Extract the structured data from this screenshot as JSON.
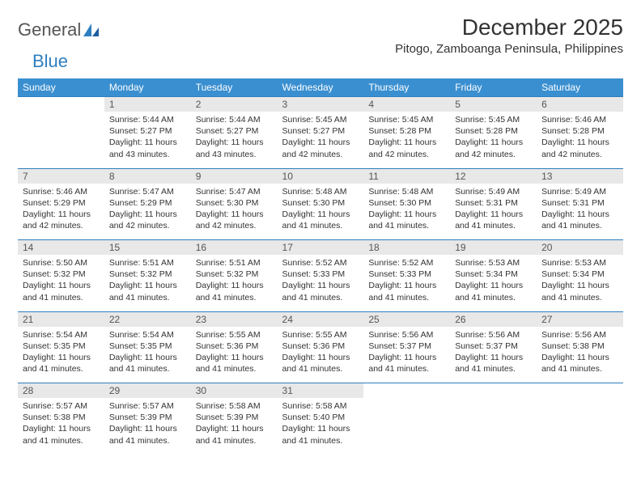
{
  "logo": {
    "text_general": "General",
    "text_blue": "Blue"
  },
  "title": "December 2025",
  "location": "Pitogo, Zamboanga Peninsula, Philippines",
  "colors": {
    "header_bg": "#3a8fd0",
    "header_text": "#ffffff",
    "daynum_bg": "#e8e8e8",
    "daynum_border": "#2f7fbf",
    "body_text": "#333333",
    "logo_blue": "#2f7fbf"
  },
  "day_headers": [
    "Sunday",
    "Monday",
    "Tuesday",
    "Wednesday",
    "Thursday",
    "Friday",
    "Saturday"
  ],
  "weeks": [
    {
      "nums": [
        "",
        "1",
        "2",
        "3",
        "4",
        "5",
        "6"
      ],
      "cells": [
        null,
        {
          "sunrise": "5:44 AM",
          "sunset": "5:27 PM",
          "daylight": "11 hours and 43 minutes."
        },
        {
          "sunrise": "5:44 AM",
          "sunset": "5:27 PM",
          "daylight": "11 hours and 43 minutes."
        },
        {
          "sunrise": "5:45 AM",
          "sunset": "5:27 PM",
          "daylight": "11 hours and 42 minutes."
        },
        {
          "sunrise": "5:45 AM",
          "sunset": "5:28 PM",
          "daylight": "11 hours and 42 minutes."
        },
        {
          "sunrise": "5:45 AM",
          "sunset": "5:28 PM",
          "daylight": "11 hours and 42 minutes."
        },
        {
          "sunrise": "5:46 AM",
          "sunset": "5:28 PM",
          "daylight": "11 hours and 42 minutes."
        }
      ]
    },
    {
      "nums": [
        "7",
        "8",
        "9",
        "10",
        "11",
        "12",
        "13"
      ],
      "cells": [
        {
          "sunrise": "5:46 AM",
          "sunset": "5:29 PM",
          "daylight": "11 hours and 42 minutes."
        },
        {
          "sunrise": "5:47 AM",
          "sunset": "5:29 PM",
          "daylight": "11 hours and 42 minutes."
        },
        {
          "sunrise": "5:47 AM",
          "sunset": "5:30 PM",
          "daylight": "11 hours and 42 minutes."
        },
        {
          "sunrise": "5:48 AM",
          "sunset": "5:30 PM",
          "daylight": "11 hours and 41 minutes."
        },
        {
          "sunrise": "5:48 AM",
          "sunset": "5:30 PM",
          "daylight": "11 hours and 41 minutes."
        },
        {
          "sunrise": "5:49 AM",
          "sunset": "5:31 PM",
          "daylight": "11 hours and 41 minutes."
        },
        {
          "sunrise": "5:49 AM",
          "sunset": "5:31 PM",
          "daylight": "11 hours and 41 minutes."
        }
      ]
    },
    {
      "nums": [
        "14",
        "15",
        "16",
        "17",
        "18",
        "19",
        "20"
      ],
      "cells": [
        {
          "sunrise": "5:50 AM",
          "sunset": "5:32 PM",
          "daylight": "11 hours and 41 minutes."
        },
        {
          "sunrise": "5:51 AM",
          "sunset": "5:32 PM",
          "daylight": "11 hours and 41 minutes."
        },
        {
          "sunrise": "5:51 AM",
          "sunset": "5:32 PM",
          "daylight": "11 hours and 41 minutes."
        },
        {
          "sunrise": "5:52 AM",
          "sunset": "5:33 PM",
          "daylight": "11 hours and 41 minutes."
        },
        {
          "sunrise": "5:52 AM",
          "sunset": "5:33 PM",
          "daylight": "11 hours and 41 minutes."
        },
        {
          "sunrise": "5:53 AM",
          "sunset": "5:34 PM",
          "daylight": "11 hours and 41 minutes."
        },
        {
          "sunrise": "5:53 AM",
          "sunset": "5:34 PM",
          "daylight": "11 hours and 41 minutes."
        }
      ]
    },
    {
      "nums": [
        "21",
        "22",
        "23",
        "24",
        "25",
        "26",
        "27"
      ],
      "cells": [
        {
          "sunrise": "5:54 AM",
          "sunset": "5:35 PM",
          "daylight": "11 hours and 41 minutes."
        },
        {
          "sunrise": "5:54 AM",
          "sunset": "5:35 PM",
          "daylight": "11 hours and 41 minutes."
        },
        {
          "sunrise": "5:55 AM",
          "sunset": "5:36 PM",
          "daylight": "11 hours and 41 minutes."
        },
        {
          "sunrise": "5:55 AM",
          "sunset": "5:36 PM",
          "daylight": "11 hours and 41 minutes."
        },
        {
          "sunrise": "5:56 AM",
          "sunset": "5:37 PM",
          "daylight": "11 hours and 41 minutes."
        },
        {
          "sunrise": "5:56 AM",
          "sunset": "5:37 PM",
          "daylight": "11 hours and 41 minutes."
        },
        {
          "sunrise": "5:56 AM",
          "sunset": "5:38 PM",
          "daylight": "11 hours and 41 minutes."
        }
      ]
    },
    {
      "nums": [
        "28",
        "29",
        "30",
        "31",
        "",
        "",
        ""
      ],
      "cells": [
        {
          "sunrise": "5:57 AM",
          "sunset": "5:38 PM",
          "daylight": "11 hours and 41 minutes."
        },
        {
          "sunrise": "5:57 AM",
          "sunset": "5:39 PM",
          "daylight": "11 hours and 41 minutes."
        },
        {
          "sunrise": "5:58 AM",
          "sunset": "5:39 PM",
          "daylight": "11 hours and 41 minutes."
        },
        {
          "sunrise": "5:58 AM",
          "sunset": "5:40 PM",
          "daylight": "11 hours and 41 minutes."
        },
        null,
        null,
        null
      ]
    }
  ],
  "labels": {
    "sunrise": "Sunrise:",
    "sunset": "Sunset:",
    "daylight": "Daylight:"
  }
}
